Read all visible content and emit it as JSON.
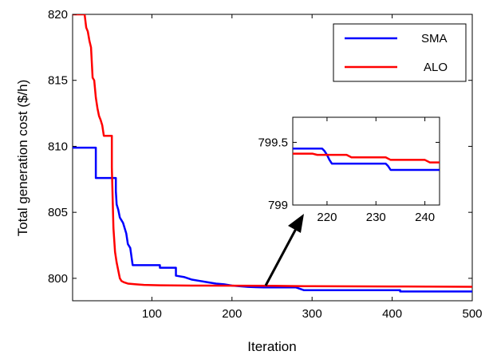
{
  "chart_data": [
    {
      "type": "line",
      "title": "",
      "xlabel": "Iteration",
      "ylabel": "Total generation cost ($/h)",
      "xlim": [
        1,
        500
      ],
      "ylim": [
        798.3,
        820
      ],
      "xticks": [
        100,
        200,
        300,
        400,
        500
      ],
      "yticks": [
        800,
        805,
        810,
        815,
        820
      ],
      "grid": false,
      "legend": "top-right",
      "series": [
        {
          "name": "SMA",
          "color": "#0000ff",
          "x": [
            1,
            30,
            30,
            55,
            55,
            56,
            58,
            60,
            62,
            64,
            66,
            68,
            70,
            73,
            76,
            76,
            110,
            110,
            130,
            130,
            140,
            150,
            160,
            170,
            180,
            190,
            200,
            220,
            230,
            240,
            260,
            280,
            290,
            300,
            320,
            350,
            380,
            410,
            410,
            450,
            500
          ],
          "y": [
            809.9,
            809.9,
            807.6,
            807.6,
            806.6,
            805.6,
            805.2,
            804.6,
            804.4,
            804.2,
            803.8,
            803.4,
            802.6,
            802.3,
            801.0,
            801.0,
            801.0,
            800.8,
            800.8,
            800.2,
            800.1,
            799.9,
            799.8,
            799.7,
            799.6,
            799.55,
            799.45,
            799.35,
            799.33,
            799.31,
            799.31,
            799.31,
            799.1,
            799.1,
            799.1,
            799.1,
            799.1,
            799.1,
            799.0,
            799.0,
            799.0
          ]
        },
        {
          "name": "ALO",
          "color": "#ff0000",
          "x": [
            1,
            8,
            16,
            18,
            20,
            22,
            24,
            26,
            28,
            30,
            32,
            34,
            36,
            38,
            40,
            42,
            44,
            46,
            48,
            50,
            50,
            52,
            54,
            56,
            58,
            60,
            62,
            65,
            70,
            80,
            90,
            110,
            150,
            250,
            300,
            400,
            500
          ],
          "y": [
            820,
            820,
            820,
            819.0,
            818.7,
            818.0,
            817.5,
            815.2,
            815.0,
            813.7,
            812.9,
            812.3,
            812.0,
            811.6,
            810.8,
            810.8,
            810.8,
            810.8,
            810.8,
            810.8,
            808.4,
            803.8,
            802.0,
            801.2,
            800.6,
            800.0,
            799.8,
            799.7,
            799.6,
            799.55,
            799.5,
            799.47,
            799.45,
            799.43,
            799.4,
            799.38,
            799.36
          ]
        }
      ]
    },
    {
      "type": "line",
      "title": "",
      "xlabel": "",
      "ylabel": "",
      "xlim": [
        213,
        243
      ],
      "ylim": [
        799,
        799.7
      ],
      "xticks": [
        220,
        230,
        240
      ],
      "yticks": [
        799,
        799.5
      ],
      "grid": false,
      "series": [
        {
          "name": "SMA",
          "color": "#0000ff",
          "x": [
            213,
            219,
            219.5,
            220,
            220.5,
            221,
            232,
            232.5,
            233,
            243
          ],
          "y": [
            799.45,
            799.45,
            799.43,
            799.4,
            799.36,
            799.33,
            799.33,
            799.31,
            799.28,
            799.28
          ]
        },
        {
          "name": "ALO",
          "color": "#ff0000",
          "x": [
            213,
            217,
            218,
            224,
            225,
            232,
            233,
            240,
            241,
            243
          ],
          "y": [
            799.41,
            799.41,
            799.4,
            799.4,
            799.38,
            799.38,
            799.36,
            799.36,
            799.34,
            799.34
          ]
        }
      ]
    }
  ]
}
